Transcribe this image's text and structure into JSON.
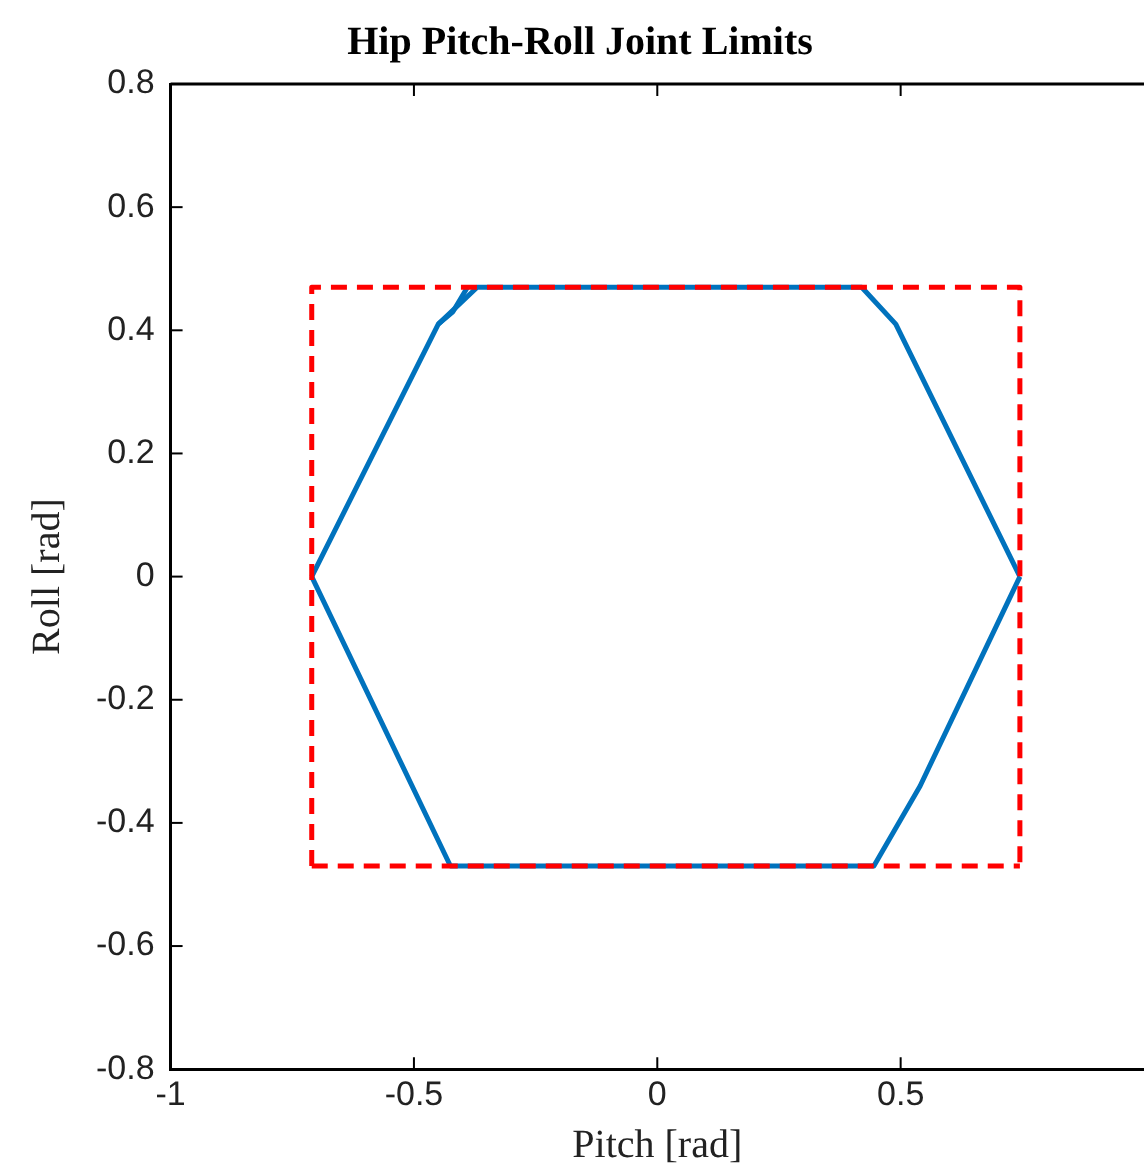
{
  "chart_data": {
    "type": "line",
    "title": "Hip Pitch-Roll Joint Limits",
    "xlabel": "Pitch [rad]",
    "ylabel": "Roll [rad]",
    "xlim": [
      -1,
      1
    ],
    "xticks": [
      -1,
      -0.5,
      0,
      0.5
    ],
    "ylim": [
      -0.8,
      0.8
    ],
    "yticks": [
      0.8,
      0.6,
      0.4,
      0.2,
      0,
      -0.2,
      -0.4,
      -0.6,
      -0.8
    ],
    "grid": false,
    "legend": false,
    "marker": "none",
    "series": [
      {
        "color": "#ff0000",
        "line_style": "dashed",
        "x": [
          -0.71,
          -0.71,
          0.745,
          0.745
        ],
        "values": [
          -0.47,
          0.47,
          0.47,
          -0.47
        ]
      },
      {
        "color": "#ff0000",
        "line_style": "dashed",
        "x": [
          -0.71,
          0.745
        ],
        "values": [
          -0.47,
          -0.47
        ]
      },
      {
        "color": "#0072bd",
        "line_style": "solid",
        "x": [
          -0.71,
          -0.45,
          -0.37,
          0.42,
          0.49,
          0.745
        ],
        "values": [
          0,
          0.41,
          0.47,
          0.47,
          0.41,
          0
        ]
      },
      {
        "color": "#0072bd",
        "line_style": "solid",
        "x": [
          -0.71,
          -0.425,
          0.445,
          0.54,
          0.745
        ],
        "values": [
          0,
          -0.47,
          -0.47,
          -0.34,
          0
        ]
      },
      {
        "color": "#0072bd",
        "line_style": "solid",
        "x": [
          -0.45,
          -0.42,
          -0.39
        ],
        "values": [
          0.41,
          0.43,
          0.47
        ]
      }
    ]
  }
}
